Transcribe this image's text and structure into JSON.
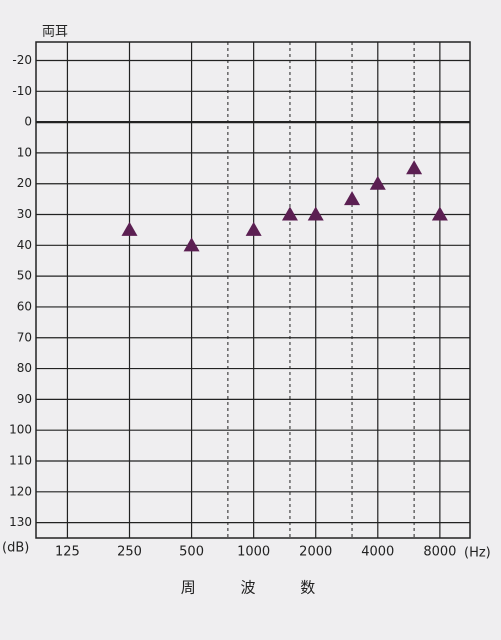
{
  "chart_data": {
    "type": "scatter",
    "title": "両耳",
    "x": [
      250,
      500,
      1000,
      1500,
      2000,
      3000,
      4000,
      6000,
      8000
    ],
    "values": [
      35,
      40,
      35,
      30,
      30,
      25,
      20,
      15,
      30
    ],
    "marker": "triangle",
    "color": "#5b1f52",
    "x_scale": "log",
    "xlim": [
      88,
      11200
    ],
    "xticks": [
      125,
      250,
      500,
      1000,
      2000,
      4000,
      8000
    ],
    "xticks_minor": [
      750,
      1500,
      3000,
      6000
    ],
    "x_unit": "(Hz)",
    "x_label": "周 波 数",
    "ylim": [
      -26,
      135
    ],
    "y_inverted": true,
    "yticks": [
      -20,
      -10,
      0,
      10,
      20,
      30,
      40,
      50,
      60,
      70,
      80,
      90,
      100,
      110,
      120,
      130
    ],
    "y_unit": "(dB)",
    "grid": true
  }
}
